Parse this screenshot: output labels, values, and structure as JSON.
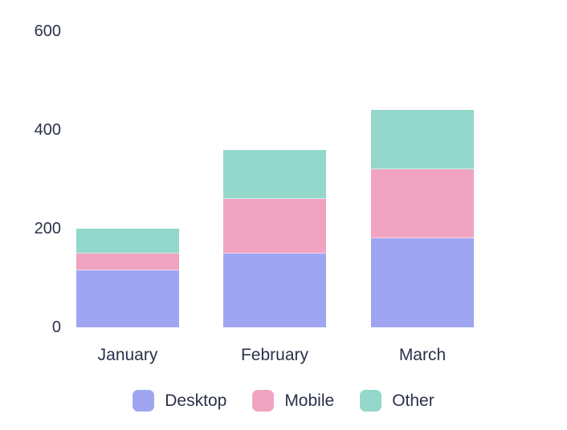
{
  "chart_data": {
    "type": "bar",
    "stacked": true,
    "title": "",
    "categories": [
      "January",
      "February",
      "March"
    ],
    "series": [
      {
        "name": "Desktop",
        "color": "#9fa5f1",
        "values": [
          115,
          150,
          180
        ]
      },
      {
        "name": "Mobile",
        "color": "#f0a4c2",
        "values": [
          35,
          110,
          140
        ]
      },
      {
        "name": "Other",
        "color": "#94d7cb",
        "values": [
          50,
          100,
          120
        ]
      }
    ],
    "ylim": [
      0,
      600
    ],
    "yticks": [
      0,
      200,
      400,
      600
    ],
    "grid": false,
    "legend_position": "bottom",
    "text_color": "#2b3249",
    "background_color": "#ffffff"
  }
}
